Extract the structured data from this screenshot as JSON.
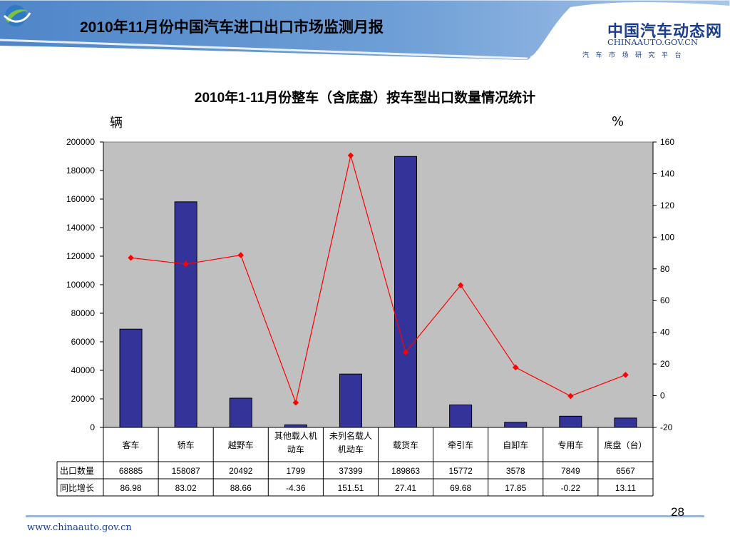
{
  "header": {
    "title": "2010年11月份中国汽车进口出口市场监测月报",
    "logo_name": "中国汽车动态网",
    "logo_domain": "CHINAAUTO.GOV.CN",
    "logo_tagline": "汽车市场研究平台",
    "logo_icon": "globe-swoosh-icon"
  },
  "chart_data": {
    "type": "bar",
    "title": "2010年1-11月份整车（含底盘）按车型出口数量情况统计",
    "left_unit": "辆",
    "right_unit": "%",
    "categories": [
      "客车",
      "轿车",
      "越野车",
      "其他载人机动车",
      "未列名载人机动车",
      "载货车",
      "牵引车",
      "自卸车",
      "专用车",
      "底盘（台）"
    ],
    "category_labels": [
      [
        "客车"
      ],
      [
        "轿车"
      ],
      [
        "越野车"
      ],
      [
        "其他载人机",
        "动车"
      ],
      [
        "未列名载人",
        "机动车"
      ],
      [
        "载货车"
      ],
      [
        "牵引车"
      ],
      [
        "自卸车"
      ],
      [
        "专用车"
      ],
      [
        "底盘（台）"
      ]
    ],
    "series": [
      {
        "name": "出口数量",
        "type": "bar",
        "axis": "left",
        "color": "#333399",
        "values": [
          68885,
          158087,
          20492,
          1799,
          37399,
          189863,
          15772,
          3578,
          7849,
          6567
        ]
      },
      {
        "name": "同比增长",
        "type": "line",
        "axis": "right",
        "color": "#ff0000",
        "values": [
          86.98,
          83.02,
          88.66,
          -4.36,
          151.51,
          27.41,
          69.68,
          17.85,
          -0.22,
          13.11
        ]
      }
    ],
    "table_values": [
      [
        "68885",
        "158087",
        "20492",
        "1799",
        "37399",
        "189863",
        "15772",
        "3578",
        "7849",
        "6567"
      ],
      [
        "86.98",
        "83.02",
        "88.66",
        "-4.36",
        "151.51",
        "27.41",
        "69.68",
        "17.85",
        "-0.22",
        "13.11"
      ]
    ],
    "ylim_left": [
      0,
      200000
    ],
    "yticks_left": [
      "0",
      "20000",
      "40000",
      "60000",
      "80000",
      "100000",
      "120000",
      "140000",
      "160000",
      "180000",
      "200000"
    ],
    "ylim_right": [
      -20,
      160
    ],
    "yticks_right": [
      "-20",
      "0",
      "20",
      "40",
      "60",
      "80",
      "100",
      "120",
      "140",
      "160"
    ],
    "plot_background": "#c0c0c0",
    "grid": false,
    "legend": "data-table"
  },
  "footer": {
    "url": "www.chinaauto.gov.cn",
    "page": "28"
  }
}
